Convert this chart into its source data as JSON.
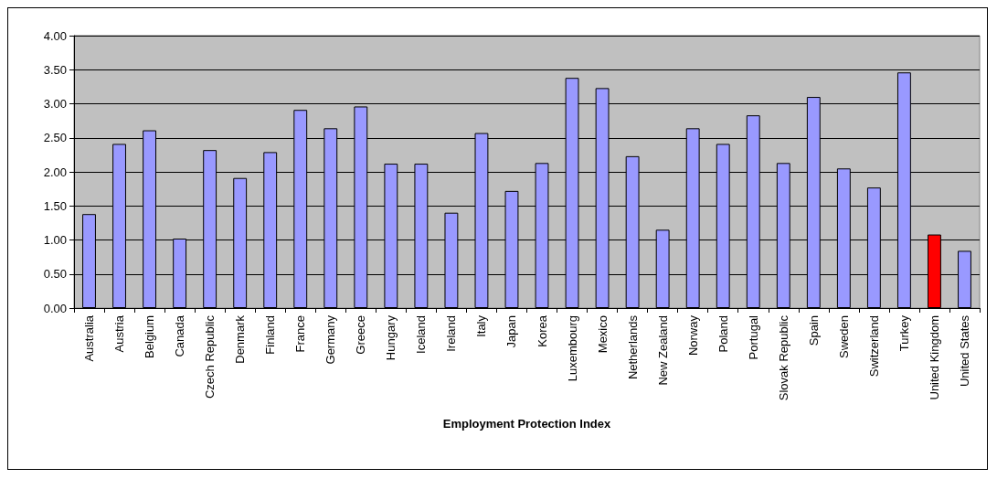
{
  "chart_data": {
    "type": "bar",
    "xlabel": "Employment Protection Index",
    "categories": [
      "Australia",
      "Austria",
      "Belgium",
      "Canada",
      "Czech Republic",
      "Denmark",
      "Finland",
      "France",
      "Germany",
      "Greece",
      "Hungary",
      "Iceland",
      "Ireland",
      "Italy",
      "Japan",
      "Korea",
      "Luxembourg",
      "Mexico",
      "Netherlands",
      "New Zealand",
      "Norway",
      "Poland",
      "Portugal",
      "Slovak Republic",
      "Spain",
      "Sweden",
      "Switzerland",
      "Turkey",
      "United Kingdom",
      "United States"
    ],
    "values": [
      1.38,
      2.41,
      2.61,
      1.02,
      2.32,
      1.91,
      2.29,
      2.91,
      2.64,
      2.96,
      2.12,
      2.12,
      1.4,
      2.57,
      1.72,
      2.13,
      3.38,
      3.23,
      2.23,
      1.15,
      2.64,
      2.41,
      2.83,
      2.13,
      3.1,
      2.05,
      1.77,
      3.46,
      1.08,
      0.84
    ],
    "colors": [
      "#9999ff",
      "#9999ff",
      "#9999ff",
      "#9999ff",
      "#9999ff",
      "#9999ff",
      "#9999ff",
      "#9999ff",
      "#9999ff",
      "#9999ff",
      "#9999ff",
      "#9999ff",
      "#9999ff",
      "#9999ff",
      "#9999ff",
      "#9999ff",
      "#9999ff",
      "#9999ff",
      "#9999ff",
      "#9999ff",
      "#9999ff",
      "#9999ff",
      "#9999ff",
      "#9999ff",
      "#9999ff",
      "#9999ff",
      "#9999ff",
      "#9999ff",
      "#ff0000",
      "#9999ff"
    ],
    "ylim": [
      0,
      4
    ],
    "yticks": [
      {
        "value": 0,
        "label": "0.00"
      },
      {
        "value": 0.5,
        "label": "0.50"
      },
      {
        "value": 1,
        "label": "1.00"
      },
      {
        "value": 1.5,
        "label": "1.50"
      },
      {
        "value": 2,
        "label": "2.00"
      },
      {
        "value": 2.5,
        "label": "2.50"
      },
      {
        "value": 3,
        "label": "3.00"
      },
      {
        "value": 3.5,
        "label": "3.50"
      },
      {
        "value": 4,
        "label": "4.00"
      }
    ],
    "grid": "y"
  }
}
